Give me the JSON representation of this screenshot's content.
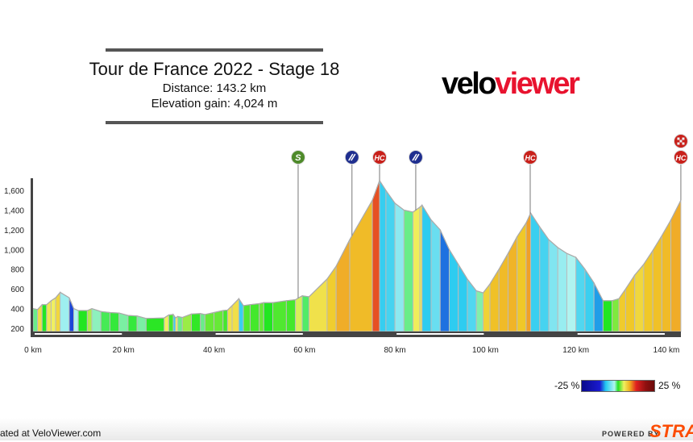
{
  "header": {
    "title": "Tour de France 2022 - Stage 18",
    "distance": "Distance: 143.2 km",
    "elevation_gain": "Elevation gain: 4,024 m"
  },
  "logo": {
    "part1": "velo",
    "part2": "viewer",
    "accent": "#e8132f"
  },
  "legend": {
    "min_label": "-25 %",
    "max_label": "25 %"
  },
  "footer": {
    "generated": "ated at VeloViewer.com",
    "powered_by": "POWERED BY",
    "strava": "STRAVA",
    "strava_color": "#fc4c02"
  },
  "chart_data": {
    "type": "area",
    "title": "Tour de France 2022 - Stage 18",
    "xlabel": "",
    "ylabel": "",
    "xlim": [
      0,
      143.2
    ],
    "ylim": [
      200,
      1700
    ],
    "x_ticks": [
      0,
      20,
      40,
      60,
      80,
      100,
      120,
      140
    ],
    "x_tick_labels": [
      "0 km",
      "20 km",
      "40 km",
      "60 km",
      "80 km",
      "100 km",
      "120 km",
      "140 km"
    ],
    "y_ticks": [
      200,
      400,
      600,
      800,
      1000,
      1200,
      1400,
      1600
    ],
    "y_tick_labels": [
      "200",
      "400",
      "600",
      "800",
      "1,000",
      "1,200",
      "1,400",
      "1,600"
    ],
    "color_by": "gradient %",
    "color_range": [
      -25,
      25
    ],
    "profile": [
      [
        0,
        400
      ],
      [
        1,
        390
      ],
      [
        2,
        440
      ],
      [
        3,
        440
      ],
      [
        4,
        480
      ],
      [
        5,
        510
      ],
      [
        6,
        565
      ],
      [
        8,
        510
      ],
      [
        9,
        400
      ],
      [
        10,
        380
      ],
      [
        12,
        380
      ],
      [
        13,
        400
      ],
      [
        15,
        370
      ],
      [
        17,
        360
      ],
      [
        19,
        355
      ],
      [
        21,
        330
      ],
      [
        23,
        325
      ],
      [
        25,
        300
      ],
      [
        29,
        305
      ],
      [
        30,
        335
      ],
      [
        31,
        340
      ],
      [
        31.5,
        305
      ],
      [
        32,
        320
      ],
      [
        33,
        310
      ],
      [
        35,
        345
      ],
      [
        37,
        350
      ],
      [
        38,
        340
      ],
      [
        40,
        360
      ],
      [
        42,
        380
      ],
      [
        43,
        385
      ],
      [
        44,
        430
      ],
      [
        45.5,
        500
      ],
      [
        46.5,
        430
      ],
      [
        48,
        440
      ],
      [
        50,
        450
      ],
      [
        51,
        460
      ],
      [
        53,
        460
      ],
      [
        56,
        480
      ],
      [
        58,
        490
      ],
      [
        59.5,
        530
      ],
      [
        61,
        520
      ],
      [
        65,
        700
      ],
      [
        67,
        830
      ],
      [
        70,
        1100
      ],
      [
        75,
        1500
      ],
      [
        76.6,
        1700
      ],
      [
        78,
        1600
      ],
      [
        80,
        1470
      ],
      [
        82,
        1400
      ],
      [
        84,
        1380
      ],
      [
        85.5,
        1430
      ],
      [
        86,
        1450
      ],
      [
        88,
        1300
      ],
      [
        90,
        1200
      ],
      [
        92,
        1000
      ],
      [
        94,
        850
      ],
      [
        96,
        700
      ],
      [
        98,
        580
      ],
      [
        99.5,
        560
      ],
      [
        101,
        650
      ],
      [
        103,
        800
      ],
      [
        105,
        960
      ],
      [
        107,
        1130
      ],
      [
        109,
        1270
      ],
      [
        110,
        1370
      ],
      [
        112,
        1230
      ],
      [
        114,
        1100
      ],
      [
        116,
        1020
      ],
      [
        118,
        960
      ],
      [
        120,
        920
      ],
      [
        122,
        800
      ],
      [
        124,
        660
      ],
      [
        126,
        480
      ],
      [
        128,
        480
      ],
      [
        129.5,
        500
      ],
      [
        131,
        600
      ],
      [
        133,
        740
      ],
      [
        135,
        850
      ],
      [
        137,
        990
      ],
      [
        139,
        1140
      ],
      [
        141,
        1300
      ],
      [
        143.2,
        1500
      ]
    ],
    "markers": [
      {
        "km": 58.6,
        "type": "sprint",
        "label": "S",
        "color": "#4e8a2a"
      },
      {
        "km": 70.5,
        "type": "feed-zone",
        "label": "",
        "color": "#1f2f8f"
      },
      {
        "km": 76.6,
        "type": "climb",
        "label": "HC",
        "color": "#c8201a"
      },
      {
        "km": 84.6,
        "type": "feed-zone",
        "label": "",
        "color": "#1f2f8f"
      },
      {
        "km": 109.9,
        "type": "climb",
        "label": "HC",
        "color": "#c8201a"
      },
      {
        "km": 143.2,
        "type": "climb",
        "label": "HC",
        "color": "#c8201a"
      },
      {
        "km": 143.2,
        "type": "finish",
        "label": "",
        "color": "#c8201a"
      }
    ]
  }
}
